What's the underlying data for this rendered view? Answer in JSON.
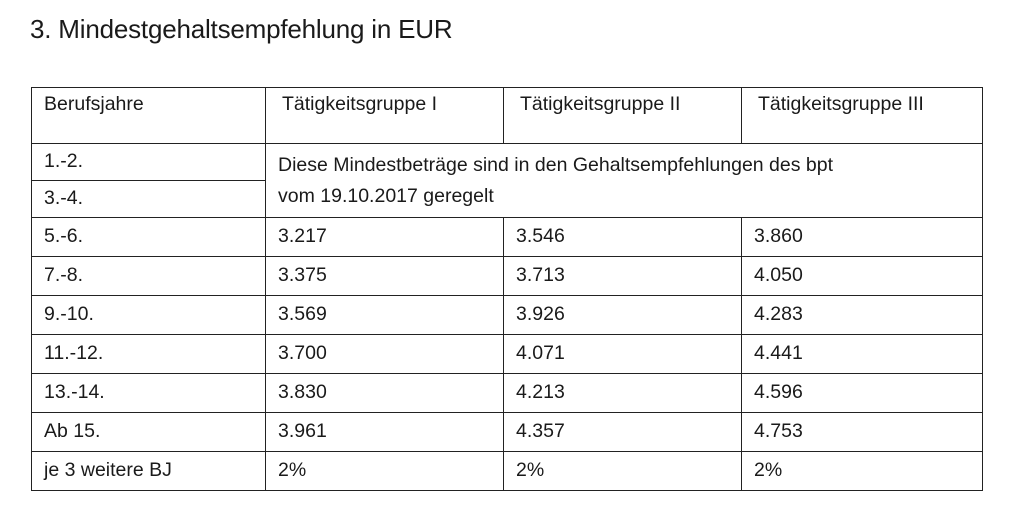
{
  "document": {
    "title": "3.  Mindestgehaltsempfehlung in EUR",
    "table": {
      "headers": [
        "Berufsjahre",
        "Tätigkeitsgruppe I",
        "Tätigkeitsgruppe II",
        "Tätigkeitsgruppe III"
      ],
      "merged_rows": {
        "labels": [
          "1.-2.",
          "3.-4."
        ],
        "note_line1": "Diese Mindestbeträge sind in den Gehaltsempfehlungen des bpt",
        "note_line2": "vom 19.10.2017 geregelt"
      },
      "rows": [
        {
          "label": "5.-6.",
          "g1": "3.217",
          "g2": "3.546",
          "g3": "3.860"
        },
        {
          "label": "7.-8.",
          "g1": "3.375",
          "g2": "3.713",
          "g3": "4.050"
        },
        {
          "label": "9.-10.",
          "g1": "3.569",
          "g2": "3.926",
          "g3": "4.283"
        },
        {
          "label": "11.-12.",
          "g1": "3.700",
          "g2": "4.071",
          "g3": "4.441"
        },
        {
          "label": "13.-14.",
          "g1": "3.830",
          "g2": "4.213",
          "g3": "4.596"
        },
        {
          "label": "Ab 15.",
          "g1": "3.961",
          "g2": "4.357",
          "g3": "4.753"
        },
        {
          "label": "je 3 weitere BJ",
          "g1": "2%",
          "g2": "2%",
          "g3": "2%"
        }
      ]
    }
  }
}
